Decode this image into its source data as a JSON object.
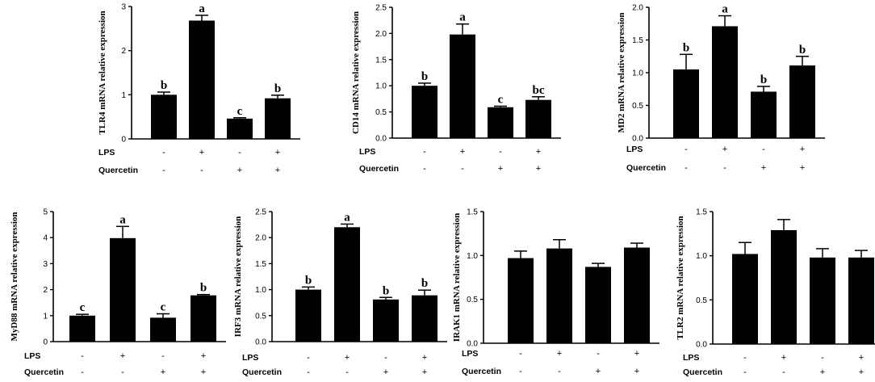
{
  "chart_data": [
    {
      "type": "bar",
      "ylabel": "TLR4 mRNA relative expression",
      "ylim": [
        0,
        3
      ],
      "yticks": [
        "0",
        "1",
        "2",
        "3"
      ],
      "values": [
        1.0,
        2.68,
        0.46,
        0.92
      ],
      "errors": [
        0.06,
        0.12,
        0.02,
        0.07
      ],
      "letters": [
        "b",
        "a",
        "c",
        "b"
      ],
      "conditions": [
        {
          "name": "LPS",
          "signs": [
            "-",
            "+",
            "-",
            "+"
          ]
        },
        {
          "name": "Quercetin",
          "signs": [
            "-",
            "-",
            "+",
            "+"
          ]
        }
      ]
    },
    {
      "type": "bar",
      "ylabel": "CD14 mRNA relative expression",
      "ylim": [
        0,
        2.5
      ],
      "yticks": [
        "0.0",
        "0.5",
        "1.0",
        "1.5",
        "2.0",
        "2.5"
      ],
      "values": [
        1.0,
        1.98,
        0.59,
        0.73
      ],
      "errors": [
        0.05,
        0.2,
        0.02,
        0.06
      ],
      "letters": [
        "b",
        "a",
        "c",
        "bc"
      ],
      "conditions": [
        {
          "name": "LPS",
          "signs": [
            "-",
            "+",
            "-",
            "+"
          ]
        },
        {
          "name": "Quercetin",
          "signs": [
            "-",
            "-",
            "+",
            "+"
          ]
        }
      ]
    },
    {
      "type": "bar",
      "ylabel": "MD2 mRNA relative expression",
      "ylim": [
        0,
        2.0
      ],
      "yticks": [
        "0.0",
        "0.5",
        "1.0",
        "1.5",
        "2.0"
      ],
      "values": [
        1.05,
        1.71,
        0.71,
        1.11
      ],
      "errors": [
        0.23,
        0.16,
        0.08,
        0.14
      ],
      "letters": [
        "b",
        "a",
        "b",
        "b"
      ],
      "conditions": [
        {
          "name": "LPS",
          "signs": [
            "-",
            "+",
            "-",
            "+"
          ]
        },
        {
          "name": "Quercetin",
          "signs": [
            "-",
            "-",
            "+",
            "+"
          ]
        }
      ]
    },
    {
      "type": "bar",
      "ylabel": "MyD88 mRNA relative expression",
      "ylim": [
        0,
        5
      ],
      "yticks": [
        "0",
        "1",
        "2",
        "3",
        "4",
        "5"
      ],
      "values": [
        1.0,
        3.98,
        0.92,
        1.78
      ],
      "errors": [
        0.05,
        0.45,
        0.15,
        0.03
      ],
      "letters": [
        "c",
        "a",
        "c",
        "b"
      ],
      "conditions": [
        {
          "name": "LPS",
          "signs": [
            "-",
            "+",
            "-",
            "+"
          ]
        },
        {
          "name": "Quercetin",
          "signs": [
            "-",
            "-",
            "+",
            "+"
          ]
        }
      ]
    },
    {
      "type": "bar",
      "ylabel": "IRF3 mRNA relative expression",
      "ylim": [
        0,
        2.5
      ],
      "yticks": [
        "0.0",
        "0.5",
        "1.0",
        "1.5",
        "2.0",
        "2.5"
      ],
      "values": [
        1.0,
        2.2,
        0.81,
        0.89
      ],
      "errors": [
        0.05,
        0.06,
        0.04,
        0.1
      ],
      "letters": [
        "b",
        "a",
        "b",
        "b"
      ],
      "conditions": [
        {
          "name": "LPS",
          "signs": [
            "-",
            "+",
            "-",
            "+"
          ]
        },
        {
          "name": "Quercetin",
          "signs": [
            "-",
            "-",
            "+",
            "+"
          ]
        }
      ]
    },
    {
      "type": "bar",
      "ylabel": "IRAK1 mRNA relative expression",
      "ylim": [
        0,
        1.5
      ],
      "yticks": [
        "0.0",
        "0.5",
        "1.0",
        "1.5"
      ],
      "values": [
        0.97,
        1.08,
        0.87,
        1.09
      ],
      "errors": [
        0.08,
        0.1,
        0.04,
        0.05
      ],
      "letters": [
        "",
        "",
        "",
        ""
      ],
      "conditions": [
        {
          "name": "LPS",
          "signs": [
            "-",
            "+",
            "-",
            "+"
          ]
        },
        {
          "name": "Quercetin",
          "signs": [
            "-",
            "-",
            "+",
            "+"
          ]
        }
      ]
    },
    {
      "type": "bar",
      "ylabel": "TLR2 mRNA relative expression",
      "ylim": [
        0,
        1.5
      ],
      "yticks": [
        "0.0",
        "0.5",
        "1.0",
        "1.5"
      ],
      "values": [
        1.02,
        1.29,
        0.98,
        0.98
      ],
      "errors": [
        0.13,
        0.12,
        0.1,
        0.08
      ],
      "letters": [
        "",
        "",
        "",
        ""
      ],
      "conditions": [
        {
          "name": "LPS",
          "signs": [
            "-",
            "+",
            "-",
            "+"
          ]
        },
        {
          "name": "Quercetin",
          "signs": [
            "-",
            "-",
            "+",
            "+"
          ]
        }
      ]
    }
  ]
}
